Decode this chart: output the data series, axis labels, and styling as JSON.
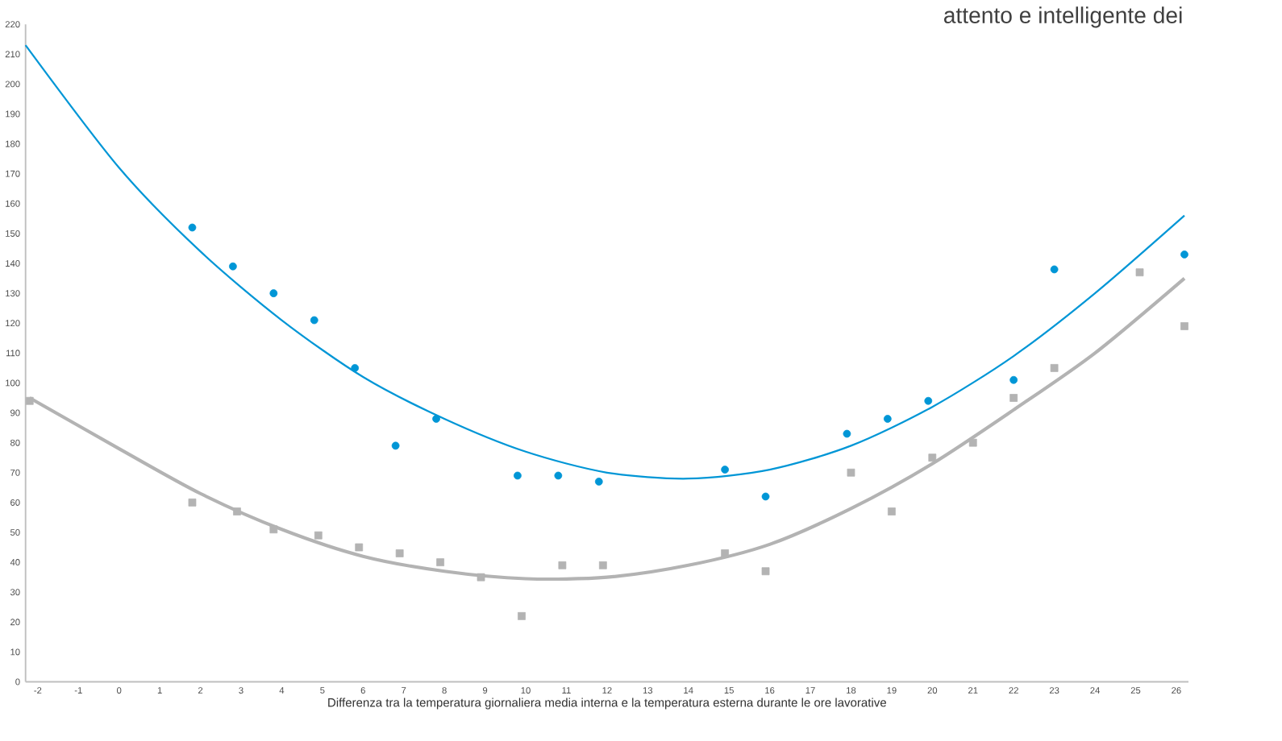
{
  "chart_data": {
    "type": "scatter",
    "xlabel": "Differenza tra la temperatura giornaliera media interna e la temperatura esterna durante le ore lavorative",
    "annotations": [
      "attento e intelligente dei"
    ],
    "xlim": [
      -2.3,
      26.3
    ],
    "xticks": [
      -2,
      -1,
      0,
      1,
      2,
      3,
      4,
      5,
      6,
      7,
      8,
      9,
      10,
      11,
      12,
      13,
      14,
      15,
      16,
      17,
      18,
      19,
      20,
      21,
      22,
      23,
      24,
      25,
      26
    ],
    "ylim": [
      0,
      220
    ],
    "yticks": [
      0,
      10,
      20,
      30,
      40,
      50,
      60,
      70,
      80,
      90,
      100,
      110,
      120,
      130,
      140,
      150,
      160,
      170,
      180,
      190,
      200,
      210,
      220
    ],
    "grid": false,
    "series": [
      {
        "marker": "circle",
        "color": "#0096d6",
        "x": [
          1.8,
          2.8,
          3.8,
          4.8,
          5.8,
          6.8,
          7.8,
          9.8,
          10.8,
          11.8,
          14.9,
          15.9,
          17.9,
          18.9,
          19.9,
          22,
          23,
          26.2
        ],
        "values": [
          152,
          139,
          130,
          121,
          105,
          79,
          88,
          69,
          69,
          67,
          71,
          62,
          83,
          88,
          94,
          101,
          138,
          143
        ]
      },
      {
        "marker": "square",
        "color": "#b3b3b3",
        "x": [
          -2.2,
          1.8,
          2.9,
          3.8,
          4.9,
          5.9,
          6.9,
          7.9,
          8.9,
          9.9,
          10.9,
          11.9,
          14.9,
          15.9,
          18,
          19,
          20,
          21,
          22,
          23,
          25.1,
          26.2
        ],
        "values": [
          94,
          60,
          57,
          51,
          49,
          45,
          43,
          40,
          35,
          22,
          39,
          39,
          43,
          37,
          70,
          57,
          75,
          80,
          95,
          105,
          137,
          119
        ]
      },
      {
        "type": "line",
        "marker": "none",
        "color": "#0096d6",
        "x": [
          -2.3,
          0,
          2,
          4,
          6,
          8,
          10,
          12,
          14,
          16,
          18,
          20,
          22,
          24,
          26.2
        ],
        "values": [
          213,
          172,
          144,
          121,
          102,
          88,
          77,
          70,
          68,
          71,
          79,
          92,
          109,
          130,
          156
        ]
      },
      {
        "type": "line",
        "marker": "none",
        "color": "#b3b3b3",
        "x": [
          -2.2,
          0,
          2,
          4,
          6,
          8,
          10,
          12,
          14,
          16,
          18,
          20,
          22,
          24,
          26.2
        ],
        "values": [
          95,
          78,
          63,
          51,
          42,
          37,
          34.5,
          35,
          39,
          46,
          58,
          73,
          91,
          110,
          135
        ]
      }
    ]
  }
}
